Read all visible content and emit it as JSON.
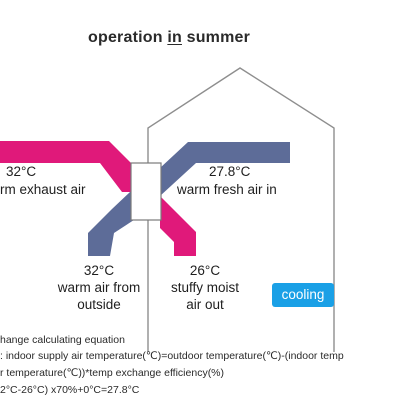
{
  "title": {
    "part1": "operation ",
    "part2": "in",
    "part3": " summer"
  },
  "labels": {
    "exhaust_temp": "32°C",
    "exhaust": "rm  exhaust air",
    "fresh_temp": "27.8°C",
    "fresh": "warm fresh air in",
    "outside_temp": "32°C",
    "outside_line1": "warm air from",
    "outside_line2": "outside",
    "moist_temp": "26°C",
    "moist_line1": "stuffy moist",
    "moist_line2": "air out"
  },
  "badge": "cooling",
  "equation": {
    "line1": "hange calculating equation",
    "line2": ": indoor supply air temperature(℃)=outdoor temperature(℃)-(indoor temp",
    "line3": "r temperature(℃))*temp exchange efficiency(%)",
    "line4": "2°C-26°C) x70%+0°C=27.8°C"
  },
  "colors": {
    "magenta": "#e0197a",
    "slate": "#5d6c98",
    "house": "#8e8e8e",
    "badge": "#1aa0e6"
  }
}
